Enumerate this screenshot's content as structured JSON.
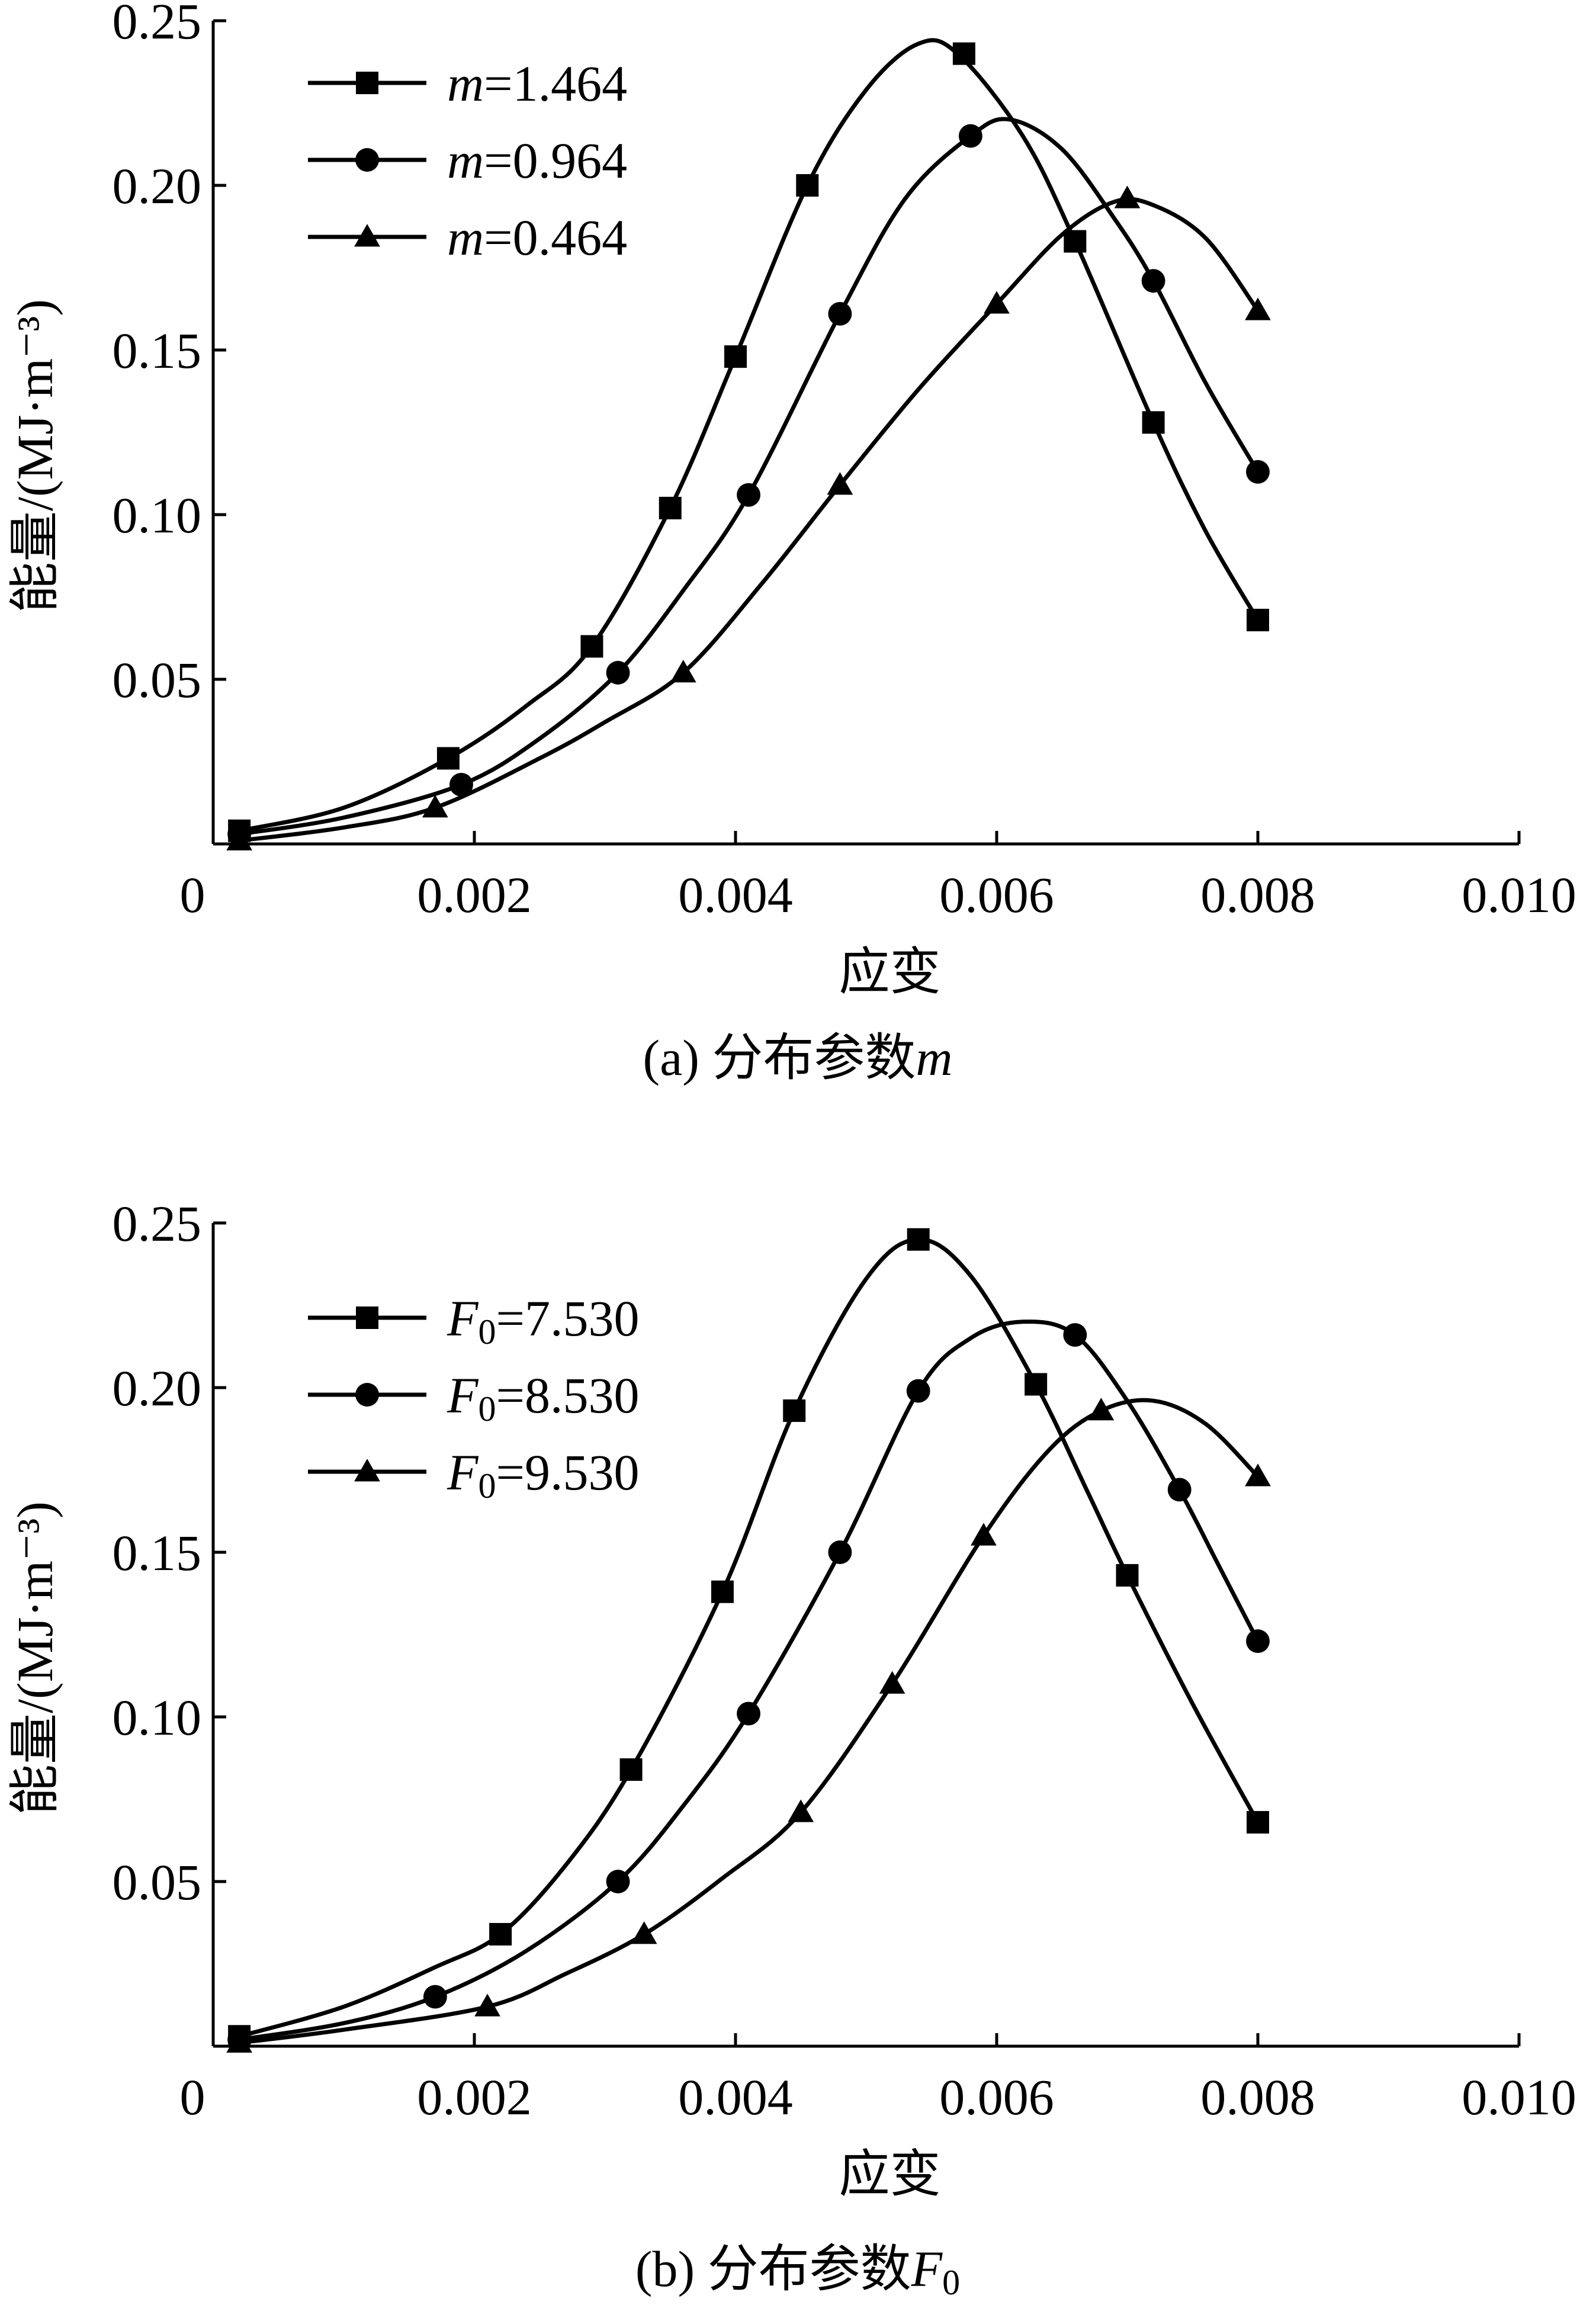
{
  "figure": {
    "panels": [
      {
        "caption_prefix": "(a)",
        "caption_text": "分布参数",
        "caption_var": "m",
        "caption_sub": ""
      },
      {
        "caption_prefix": "(b)",
        "caption_text": "分布参数",
        "caption_var": "F",
        "caption_sub": "0"
      }
    ]
  },
  "chart_data": [
    {
      "type": "line",
      "xlabel": "应变",
      "ylabel": "能量/(MJ·m⁻³)",
      "xlim": [
        0,
        0.01
      ],
      "ylim": [
        0,
        0.25
      ],
      "x_ticks": [
        "0",
        "0.002",
        "0.004",
        "0.006",
        "0.008",
        "0.010"
      ],
      "y_ticks": [
        "0.05",
        "0.10",
        "0.15",
        "0.20",
        "0.25"
      ],
      "legend_position": "top-left",
      "series": [
        {
          "name": "m=1.464",
          "legend_var": "m",
          "legend_sub": "",
          "legend_value": "=1.464",
          "marker": "square",
          "points": [
            [
              0.0002,
              0.004
            ],
            [
              0.0018,
              0.026
            ],
            [
              0.0029,
              0.06
            ],
            [
              0.0035,
              0.102
            ],
            [
              0.004,
              0.148
            ],
            [
              0.00455,
              0.2
            ],
            [
              0.00575,
              0.24
            ],
            [
              0.0066,
              0.183
            ],
            [
              0.0072,
              0.128
            ],
            [
              0.008,
              0.068
            ]
          ],
          "curve": [
            [
              0.0002,
              0.004
            ],
            [
              0.001,
              0.011
            ],
            [
              0.0018,
              0.026
            ],
            [
              0.0024,
              0.042
            ],
            [
              0.0029,
              0.06
            ],
            [
              0.0035,
              0.102
            ],
            [
              0.004,
              0.148
            ],
            [
              0.00455,
              0.2
            ],
            [
              0.005,
              0.229
            ],
            [
              0.0054,
              0.243
            ],
            [
              0.0057,
              0.24
            ],
            [
              0.0062,
              0.215
            ],
            [
              0.0066,
              0.183
            ],
            [
              0.0072,
              0.128
            ],
            [
              0.0076,
              0.095
            ],
            [
              0.008,
              0.068
            ]
          ]
        },
        {
          "name": "m=0.964",
          "legend_var": "m",
          "legend_sub": "",
          "legend_value": "=0.964",
          "marker": "circle",
          "points": [
            [
              0.0002,
              0.003
            ],
            [
              0.0019,
              0.018
            ],
            [
              0.0031,
              0.052
            ],
            [
              0.0041,
              0.106
            ],
            [
              0.0048,
              0.161
            ],
            [
              0.0058,
              0.215
            ],
            [
              0.0072,
              0.171
            ],
            [
              0.008,
              0.113
            ]
          ],
          "curve": [
            [
              0.0002,
              0.003
            ],
            [
              0.001,
              0.008
            ],
            [
              0.0019,
              0.018
            ],
            [
              0.0025,
              0.032
            ],
            [
              0.0031,
              0.052
            ],
            [
              0.0036,
              0.077
            ],
            [
              0.0041,
              0.106
            ],
            [
              0.0048,
              0.161
            ],
            [
              0.0053,
              0.196
            ],
            [
              0.0058,
              0.215
            ],
            [
              0.0061,
              0.22
            ],
            [
              0.0065,
              0.211
            ],
            [
              0.0069,
              0.19
            ],
            [
              0.0072,
              0.171
            ],
            [
              0.0076,
              0.14
            ],
            [
              0.008,
              0.113
            ]
          ]
        },
        {
          "name": "m=0.464",
          "legend_var": "m",
          "legend_sub": "",
          "legend_value": "=0.464",
          "marker": "triangle",
          "points": [
            [
              0.0002,
              0.001
            ],
            [
              0.0017,
              0.011
            ],
            [
              0.0036,
              0.052
            ],
            [
              0.0048,
              0.109
            ],
            [
              0.006,
              0.164
            ],
            [
              0.007,
              0.196
            ],
            [
              0.008,
              0.162
            ]
          ],
          "curve": [
            [
              0.0002,
              0.001
            ],
            [
              0.001,
              0.005
            ],
            [
              0.0017,
              0.011
            ],
            [
              0.0025,
              0.026
            ],
            [
              0.003,
              0.037
            ],
            [
              0.0036,
              0.052
            ],
            [
              0.0042,
              0.079
            ],
            [
              0.0048,
              0.109
            ],
            [
              0.0054,
              0.138
            ],
            [
              0.006,
              0.164
            ],
            [
              0.0065,
              0.185
            ],
            [
              0.0069,
              0.195
            ],
            [
              0.0072,
              0.194
            ],
            [
              0.0076,
              0.184
            ],
            [
              0.008,
              0.162
            ]
          ]
        }
      ]
    },
    {
      "type": "line",
      "xlabel": "应变",
      "ylabel": "能量/(MJ·m⁻³)",
      "xlim": [
        0,
        0.01
      ],
      "ylim": [
        0,
        0.25
      ],
      "x_ticks": [
        "0",
        "0.002",
        "0.004",
        "0.006",
        "0.008",
        "0.010"
      ],
      "y_ticks": [
        "0.05",
        "0.10",
        "0.15",
        "0.20",
        "0.25"
      ],
      "legend_position": "top-left",
      "series": [
        {
          "name": "F0=7.530",
          "legend_var": "F",
          "legend_sub": "0",
          "legend_value": "=7.530",
          "marker": "square",
          "points": [
            [
              0.0002,
              0.003
            ],
            [
              0.0022,
              0.034
            ],
            [
              0.0032,
              0.084
            ],
            [
              0.0039,
              0.138
            ],
            [
              0.00445,
              0.193
            ],
            [
              0.0054,
              0.245
            ],
            [
              0.0063,
              0.201
            ],
            [
              0.007,
              0.143
            ],
            [
              0.008,
              0.068
            ]
          ],
          "curve": [
            [
              0.0002,
              0.003
            ],
            [
              0.001,
              0.012
            ],
            [
              0.0017,
              0.024
            ],
            [
              0.0022,
              0.034
            ],
            [
              0.0027,
              0.055
            ],
            [
              0.0032,
              0.084
            ],
            [
              0.0039,
              0.138
            ],
            [
              0.00445,
              0.193
            ],
            [
              0.005,
              0.233
            ],
            [
              0.0054,
              0.245
            ],
            [
              0.0058,
              0.234
            ],
            [
              0.0063,
              0.201
            ],
            [
              0.0067,
              0.168
            ],
            [
              0.007,
              0.143
            ],
            [
              0.0075,
              0.104
            ],
            [
              0.008,
              0.068
            ]
          ]
        },
        {
          "name": "F0=8.530",
          "legend_var": "F",
          "legend_sub": "0",
          "legend_value": "=8.530",
          "marker": "circle",
          "points": [
            [
              0.0002,
              0.002
            ],
            [
              0.0017,
              0.015
            ],
            [
              0.0031,
              0.05
            ],
            [
              0.0041,
              0.101
            ],
            [
              0.0048,
              0.15
            ],
            [
              0.0054,
              0.199
            ],
            [
              0.0066,
              0.216
            ],
            [
              0.0074,
              0.169
            ],
            [
              0.008,
              0.123
            ]
          ],
          "curve": [
            [
              0.0002,
              0.002
            ],
            [
              0.001,
              0.007
            ],
            [
              0.0017,
              0.015
            ],
            [
              0.0024,
              0.029
            ],
            [
              0.0031,
              0.05
            ],
            [
              0.0036,
              0.073
            ],
            [
              0.0041,
              0.101
            ],
            [
              0.0048,
              0.15
            ],
            [
              0.0054,
              0.199
            ],
            [
              0.0058,
              0.215
            ],
            [
              0.0062,
              0.22
            ],
            [
              0.0066,
              0.216
            ],
            [
              0.007,
              0.196
            ],
            [
              0.0074,
              0.169
            ],
            [
              0.0077,
              0.146
            ],
            [
              0.008,
              0.123
            ]
          ]
        },
        {
          "name": "F0=9.530",
          "legend_var": "F",
          "legend_sub": "0",
          "legend_value": "=9.530",
          "marker": "triangle",
          "points": [
            [
              0.0002,
              0.001
            ],
            [
              0.0021,
              0.012
            ],
            [
              0.0033,
              0.034
            ],
            [
              0.0045,
              0.071
            ],
            [
              0.0052,
              0.11
            ],
            [
              0.0059,
              0.155
            ],
            [
              0.0068,
              0.193
            ],
            [
              0.008,
              0.173
            ]
          ],
          "curve": [
            [
              0.0002,
              0.001
            ],
            [
              0.001,
              0.005
            ],
            [
              0.0021,
              0.012
            ],
            [
              0.0027,
              0.022
            ],
            [
              0.0033,
              0.034
            ],
            [
              0.0039,
              0.051
            ],
            [
              0.0045,
              0.071
            ],
            [
              0.0052,
              0.11
            ],
            [
              0.0059,
              0.155
            ],
            [
              0.0064,
              0.181
            ],
            [
              0.0068,
              0.193
            ],
            [
              0.0072,
              0.196
            ],
            [
              0.0076,
              0.189
            ],
            [
              0.008,
              0.173
            ]
          ]
        }
      ]
    }
  ]
}
